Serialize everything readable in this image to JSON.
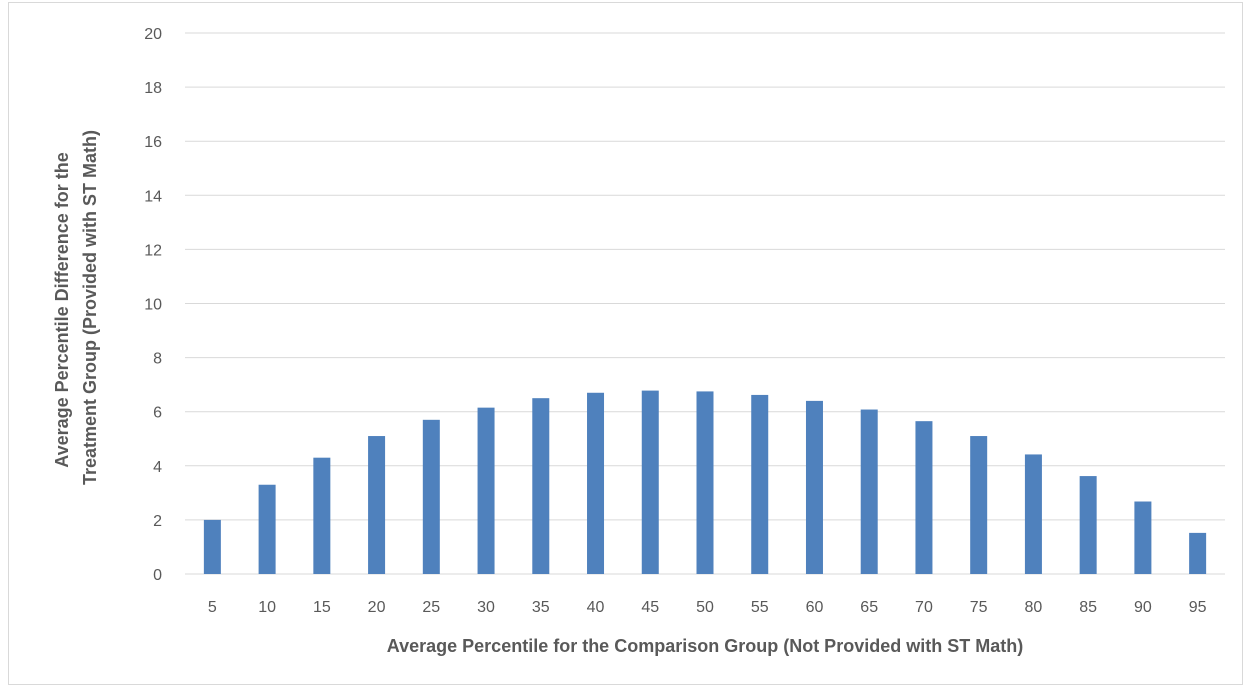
{
  "chart_data": {
    "type": "bar",
    "title": "",
    "xlabel": "Average Percentile for the Comparison Group (Not Provided with ST Math)",
    "ylabel_lines": [
      "Average  Percentile Difference for the",
      "Treatment Group (Provided with ST Math)"
    ],
    "categories": [
      "5",
      "10",
      "15",
      "20",
      "25",
      "30",
      "35",
      "40",
      "45",
      "50",
      "55",
      "60",
      "65",
      "70",
      "75",
      "80",
      "85",
      "90",
      "95"
    ],
    "values": [
      2.0,
      3.3,
      4.3,
      5.1,
      5.7,
      6.15,
      6.5,
      6.7,
      6.78,
      6.75,
      6.62,
      6.4,
      6.08,
      5.65,
      5.1,
      4.42,
      3.62,
      2.68,
      1.52
    ],
    "ylim": [
      0,
      20
    ],
    "yticks": [
      0,
      2,
      4,
      6,
      8,
      10,
      12,
      14,
      16,
      18,
      20
    ],
    "grid": true,
    "legend": "none",
    "bar_color": "#4f81bd",
    "grid_color": "#d9d9d9"
  }
}
